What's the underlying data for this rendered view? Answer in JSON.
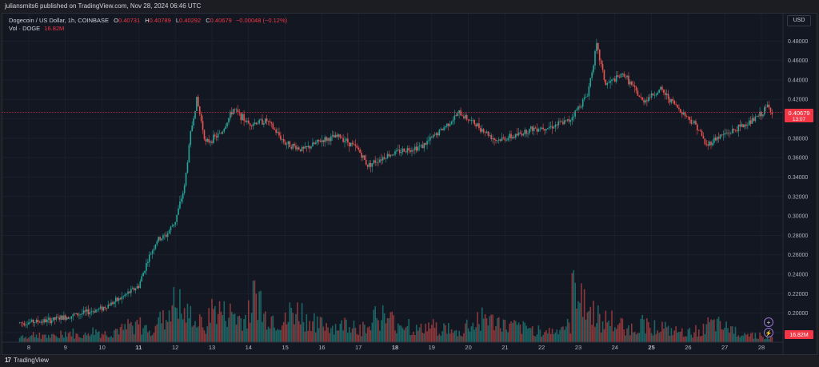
{
  "header": {
    "publisher_line": "juliansmits6 published on TradingView.com, Nov 28, 2024 06:46 UTC"
  },
  "legend": {
    "symbol": "Dogecoin / US Dollar, 1h, COINBASE",
    "o_label": "O",
    "o_value": "0.40731",
    "h_label": "H",
    "h_value": "0.40789",
    "l_label": "L",
    "l_value": "0.40292",
    "c_label": "C",
    "c_value": "0.40679",
    "change": "−0.00048 (−0.12%)",
    "vol_label": "Vol · DOGE",
    "vol_value": "16.82M"
  },
  "price_scale": {
    "currency": "USD",
    "ticks": [
      "0.48000",
      "0.46000",
      "0.44000",
      "0.42000",
      "0.40000",
      "0.38000",
      "0.36000",
      "0.34000",
      "0.32000",
      "0.30000",
      "0.28000",
      "0.26000",
      "0.24000",
      "0.22000",
      "0.20000",
      "0.18000"
    ],
    "current_price": "0.40679",
    "countdown": "13:07",
    "volume_badge": "16.82M"
  },
  "time_axis": {
    "labels": [
      "8",
      "9",
      "10",
      "11",
      "12",
      "13",
      "14",
      "15",
      "16",
      "17",
      "18",
      "19",
      "20",
      "21",
      "22",
      "23",
      "24",
      "25",
      "26",
      "27",
      "28"
    ],
    "bold_labels": [
      "11",
      "18",
      "25"
    ]
  },
  "footer": {
    "brand": "TradingView"
  },
  "colors": {
    "up": "#26a69a",
    "down": "#ef5350",
    "background": "#131722",
    "grid": "#1f2330",
    "price_line": "#f23645"
  },
  "chart_data": {
    "type": "candlestick",
    "title": "Dogecoin / US Dollar, 1h, COINBASE",
    "xlabel": "",
    "ylabel": "",
    "x_range": [
      "Nov 7",
      "Nov 28"
    ],
    "ylim": [
      0.175,
      0.5
    ],
    "grid": true,
    "series": [
      {
        "name": "price",
        "path": [
          [
            "Nov 7 18:00",
            0.19
          ],
          [
            "Nov 8 12:00",
            0.192
          ],
          [
            "Nov 9 00:00",
            0.196
          ],
          [
            "Nov 9 12:00",
            0.2
          ],
          [
            "Nov 10 00:00",
            0.205
          ],
          [
            "Nov 10 12:00",
            0.215
          ],
          [
            "Nov 11 00:00",
            0.228
          ],
          [
            "Nov 11 06:00",
            0.255
          ],
          [
            "Nov 11 12:00",
            0.275
          ],
          [
            "Nov 11 18:00",
            0.28
          ],
          [
            "Nov 12 00:00",
            0.295
          ],
          [
            "Nov 12 06:00",
            0.33
          ],
          [
            "Nov 12 10:00",
            0.385
          ],
          [
            "Nov 12 14:00",
            0.42
          ],
          [
            "Nov 12 20:00",
            0.375
          ],
          [
            "Nov 13 06:00",
            0.385
          ],
          [
            "Nov 13 14:00",
            0.41
          ],
          [
            "Nov 14 00:00",
            0.395
          ],
          [
            "Nov 14 12:00",
            0.398
          ],
          [
            "Nov 15 00:00",
            0.375
          ],
          [
            "Nov 15 12:00",
            0.368
          ],
          [
            "Nov 16 00:00",
            0.378
          ],
          [
            "Nov 16 12:00",
            0.382
          ],
          [
            "Nov 17 00:00",
            0.368
          ],
          [
            "Nov 17 06:00",
            0.352
          ],
          [
            "Nov 17 18:00",
            0.362
          ],
          [
            "Nov 18 06:00",
            0.368
          ],
          [
            "Nov 18 18:00",
            0.372
          ],
          [
            "Nov 19 06:00",
            0.388
          ],
          [
            "Nov 19 18:00",
            0.406
          ],
          [
            "Nov 20 06:00",
            0.393
          ],
          [
            "Nov 20 18:00",
            0.378
          ],
          [
            "Nov 21 06:00",
            0.382
          ],
          [
            "Nov 21 18:00",
            0.39
          ],
          [
            "Nov 22 06:00",
            0.392
          ],
          [
            "Nov 22 18:00",
            0.398
          ],
          [
            "Nov 23 06:00",
            0.425
          ],
          [
            "Nov 23 12:00",
            0.475
          ],
          [
            "Nov 23 18:00",
            0.435
          ],
          [
            "Nov 24 06:00",
            0.446
          ],
          [
            "Nov 24 18:00",
            0.418
          ],
          [
            "Nov 25 06:00",
            0.43
          ],
          [
            "Nov 25 18:00",
            0.41
          ],
          [
            "Nov 26 06:00",
            0.392
          ],
          [
            "Nov 26 12:00",
            0.372
          ],
          [
            "Nov 26 18:00",
            0.38
          ],
          [
            "Nov 27 06:00",
            0.388
          ],
          [
            "Nov 27 18:00",
            0.398
          ],
          [
            "Nov 28 00:00",
            0.405
          ],
          [
            "Nov 28 04:00",
            0.413
          ],
          [
            "Nov 28 07:00",
            0.4068
          ]
        ]
      },
      {
        "name": "volume",
        "values_million": [
          20,
          25,
          18,
          30,
          22,
          35,
          28,
          40,
          55,
          45,
          70,
          120,
          85,
          60,
          100,
          90,
          75,
          140,
          80,
          65,
          95,
          70,
          55,
          50,
          60,
          45,
          85,
          70,
          60,
          40,
          50,
          45,
          30,
          55,
          80,
          65,
          50,
          45,
          40,
          35,
          50,
          180,
          95,
          70,
          55,
          45,
          60,
          50,
          35,
          30,
          40,
          55,
          45,
          35,
          25,
          16.82
        ]
      }
    ]
  }
}
